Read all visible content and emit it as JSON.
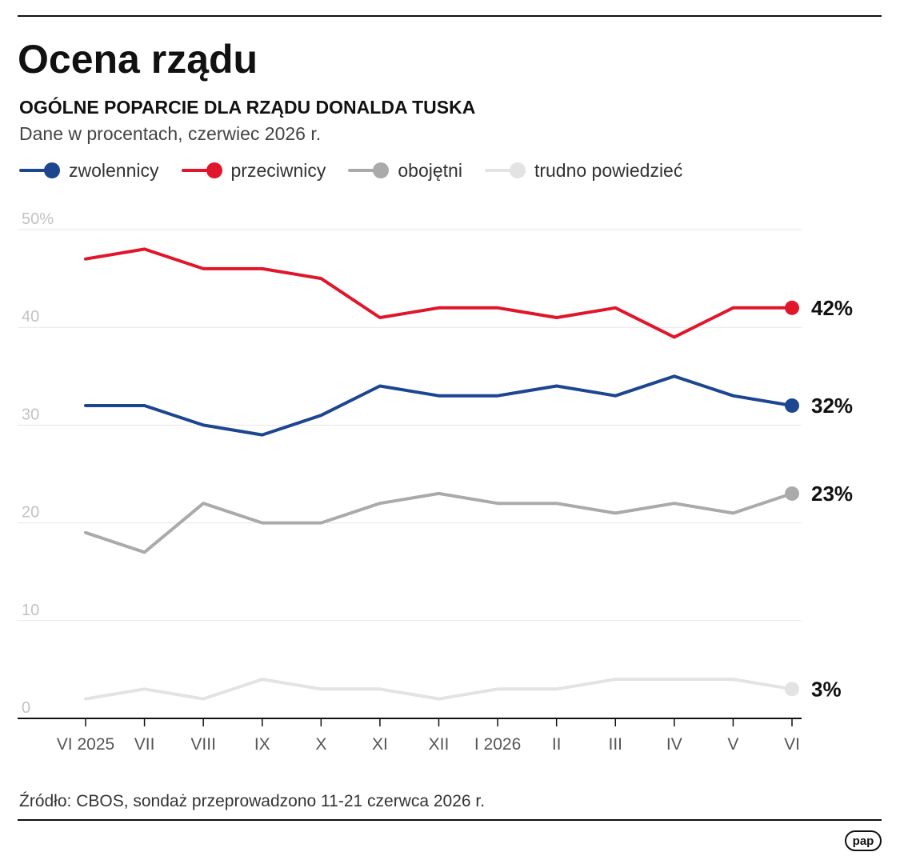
{
  "title": "Ocena rządu",
  "subtitle": "OGÓLNE POPARCIE DLA RZĄDU DONALDA TUSKA",
  "note": "Dane w procentach, czerwiec 2026 r.",
  "source": "Źródło: CBOS, sondaż przeprowadzono 11-21 czerwca 2026 r.",
  "logo_text": "pap",
  "legend": [
    {
      "label": "zwolennicy",
      "color": "#1c4690"
    },
    {
      "label": "przeciwnicy",
      "color": "#e0162b"
    },
    {
      "label": "obojętni",
      "color": "#aaaaaa"
    },
    {
      "label": "trudno powiedzieć",
      "color": "#e3e3e3"
    }
  ],
  "chart_data": {
    "type": "line",
    "title": "Ocena rządu",
    "subtitle": "OGÓLNE POPARCIE DLA RZĄDU DONALDA TUSKA",
    "x": [
      "VI 2025",
      "VII",
      "VIII",
      "IX",
      "X",
      "XI",
      "XII",
      "I 2026",
      "II",
      "III",
      "IV",
      "V",
      "VI"
    ],
    "y_ticks": [
      "0",
      "10",
      "20",
      "30",
      "40",
      "50%"
    ],
    "ylim": [
      0,
      50
    ],
    "grid": true,
    "legend_position": "top-left",
    "series": [
      {
        "name": "przeciwnicy",
        "color": "#e0162b",
        "values": [
          47,
          48,
          46,
          46,
          45,
          41,
          42,
          42,
          41,
          42,
          39,
          42,
          42
        ],
        "end_label": "42%"
      },
      {
        "name": "zwolennicy",
        "color": "#1c4690",
        "values": [
          32,
          32,
          30,
          29,
          31,
          34,
          33,
          33,
          34,
          33,
          35,
          33,
          32
        ],
        "end_label": "32%"
      },
      {
        "name": "obojętni",
        "color": "#aaaaaa",
        "values": [
          19,
          17,
          22,
          20,
          20,
          22,
          23,
          22,
          22,
          21,
          22,
          21,
          23
        ],
        "end_label": "23%"
      },
      {
        "name": "trudno powiedzieć",
        "color": "#e3e3e3",
        "values": [
          2,
          3,
          2,
          4,
          3,
          3,
          2,
          3,
          3,
          4,
          4,
          4,
          3
        ],
        "end_label": "3%"
      }
    ]
  }
}
